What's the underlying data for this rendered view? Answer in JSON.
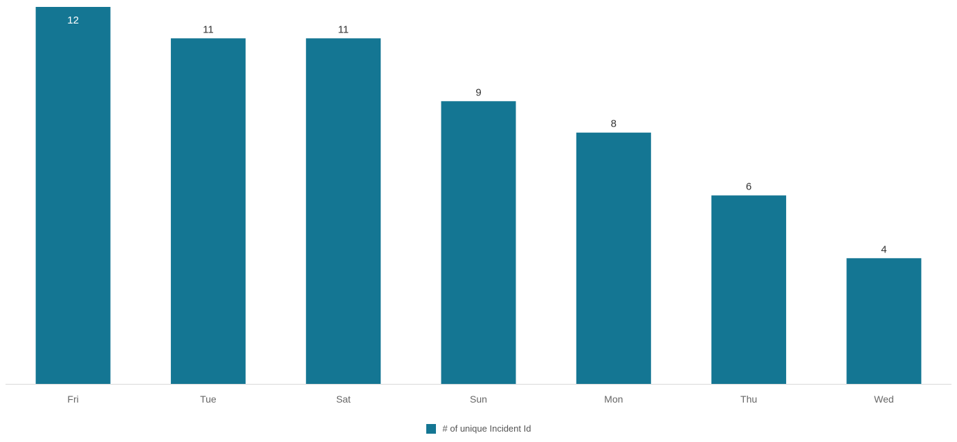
{
  "chart_data": {
    "type": "bar",
    "categories": [
      "Fri",
      "Tue",
      "Sat",
      "Sun",
      "Mon",
      "Thu",
      "Wed"
    ],
    "series": [
      {
        "name": "# of unique Incident Id",
        "values": [
          12,
          11,
          11,
          9,
          8,
          6,
          4
        ]
      }
    ],
    "ylim": [
      0,
      12
    ],
    "grid": false,
    "legend": "bottom-center",
    "data_labels": true,
    "colors": {
      "bar": "#147693",
      "axis": "#d9d9d9",
      "tick_label": "#666666",
      "data_label": "#333333",
      "data_label_inside": "#ffffff"
    }
  }
}
